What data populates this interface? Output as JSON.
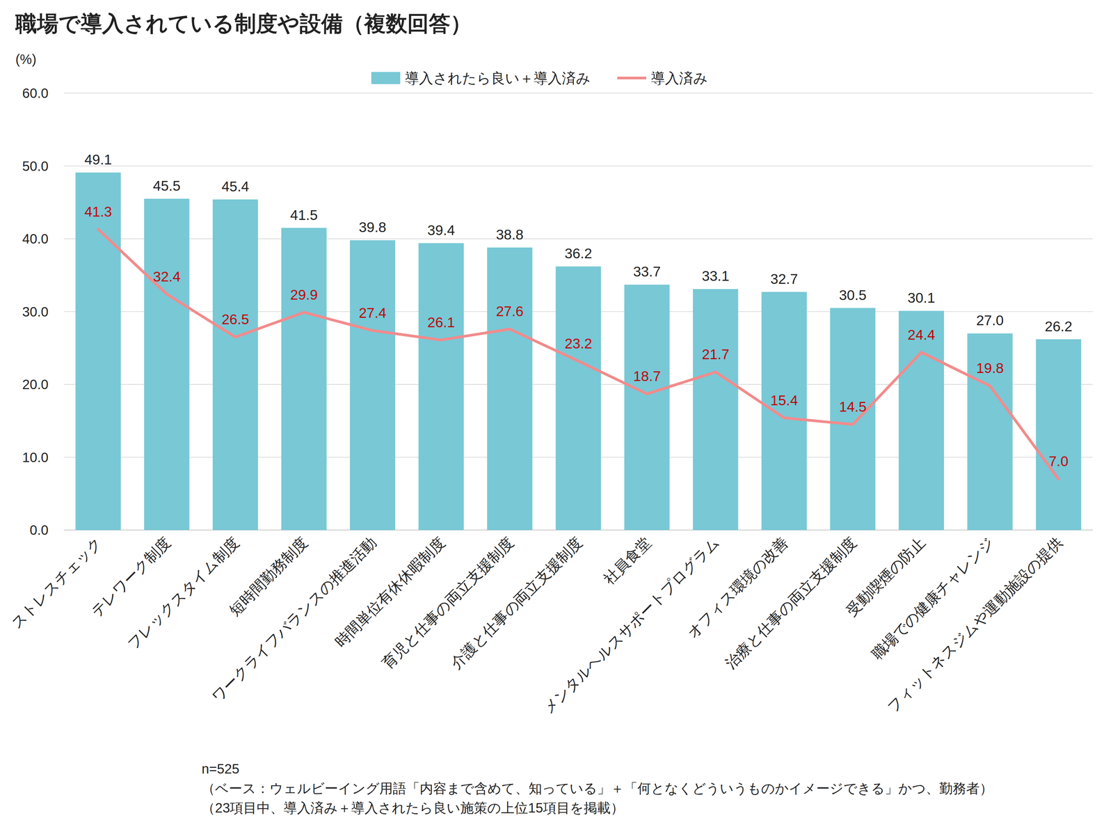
{
  "chart_data": {
    "type": "bar",
    "title": "職場で導入されている制度や設備（複数回答）",
    "y_label": "(%)",
    "categories": [
      "ストレスチェック",
      "テレワーク制度",
      "フレックスタイム制度",
      "短時間勤務制度",
      "ワークライフバランスの推進活動",
      "時間単位有休休暇制度",
      "育児と仕事の両立支援制度",
      "介護と仕事の両立支援制度",
      "社員食堂",
      "メンタルヘルスサポートプログラム",
      "オフィス環境の改善",
      "治療と仕事の両立支援制度",
      "受動喫煙の防止",
      "職場での健康チャレンジ",
      "フィットネスジムや運動施設の提供"
    ],
    "series": [
      {
        "name": "導入されたら良い＋導入済み",
        "type": "bar",
        "color": "#78c8d6",
        "values": [
          49.1,
          45.5,
          45.4,
          41.5,
          39.8,
          39.4,
          38.8,
          36.2,
          33.7,
          33.1,
          32.7,
          30.5,
          30.1,
          27.0,
          26.2
        ],
        "value_labels": [
          "49.1",
          "45.5",
          "45.4",
          "41.5",
          "39.8",
          "39.4",
          "38.8",
          "36.2",
          "33.7",
          "33.1",
          "32.7",
          "30.5",
          "30.1",
          "27.0",
          "26.2"
        ]
      },
      {
        "name": "導入済み",
        "type": "line",
        "color": "#f28b8b",
        "values": [
          41.3,
          32.4,
          26.5,
          29.9,
          27.4,
          26.1,
          27.6,
          23.2,
          18.7,
          21.7,
          15.4,
          14.5,
          24.4,
          19.8,
          7.0
        ],
        "value_labels": [
          "41.3",
          "32.4",
          "26.5",
          "29.9",
          "27.4",
          "26.1",
          "27.6",
          "23.2",
          "18.7",
          "21.7",
          "15.4",
          "14.5",
          "24.4",
          "19.8",
          "7.0"
        ]
      }
    ],
    "ylim": [
      0,
      60
    ],
    "yticks": [
      {
        "value": 0,
        "label": "0.0"
      },
      {
        "value": 10,
        "label": "10.0"
      },
      {
        "value": 20,
        "label": "20.0"
      },
      {
        "value": 30,
        "label": "30.0"
      },
      {
        "value": 40,
        "label": "40.0"
      },
      {
        "value": 50,
        "label": "50.0"
      },
      {
        "value": 60,
        "label": "60.0"
      }
    ],
    "grid": true,
    "legend": "top",
    "data_labels": true,
    "notes": [
      "n=525",
      "（ベース：ウェルビーイング用語「内容まで含めて、知っている」＋「何となくどういうものかイメージできる」かつ、勤務者）",
      "（23項目中、導入済み＋導入されたら良い施策の上位15項目を掲載）"
    ]
  }
}
